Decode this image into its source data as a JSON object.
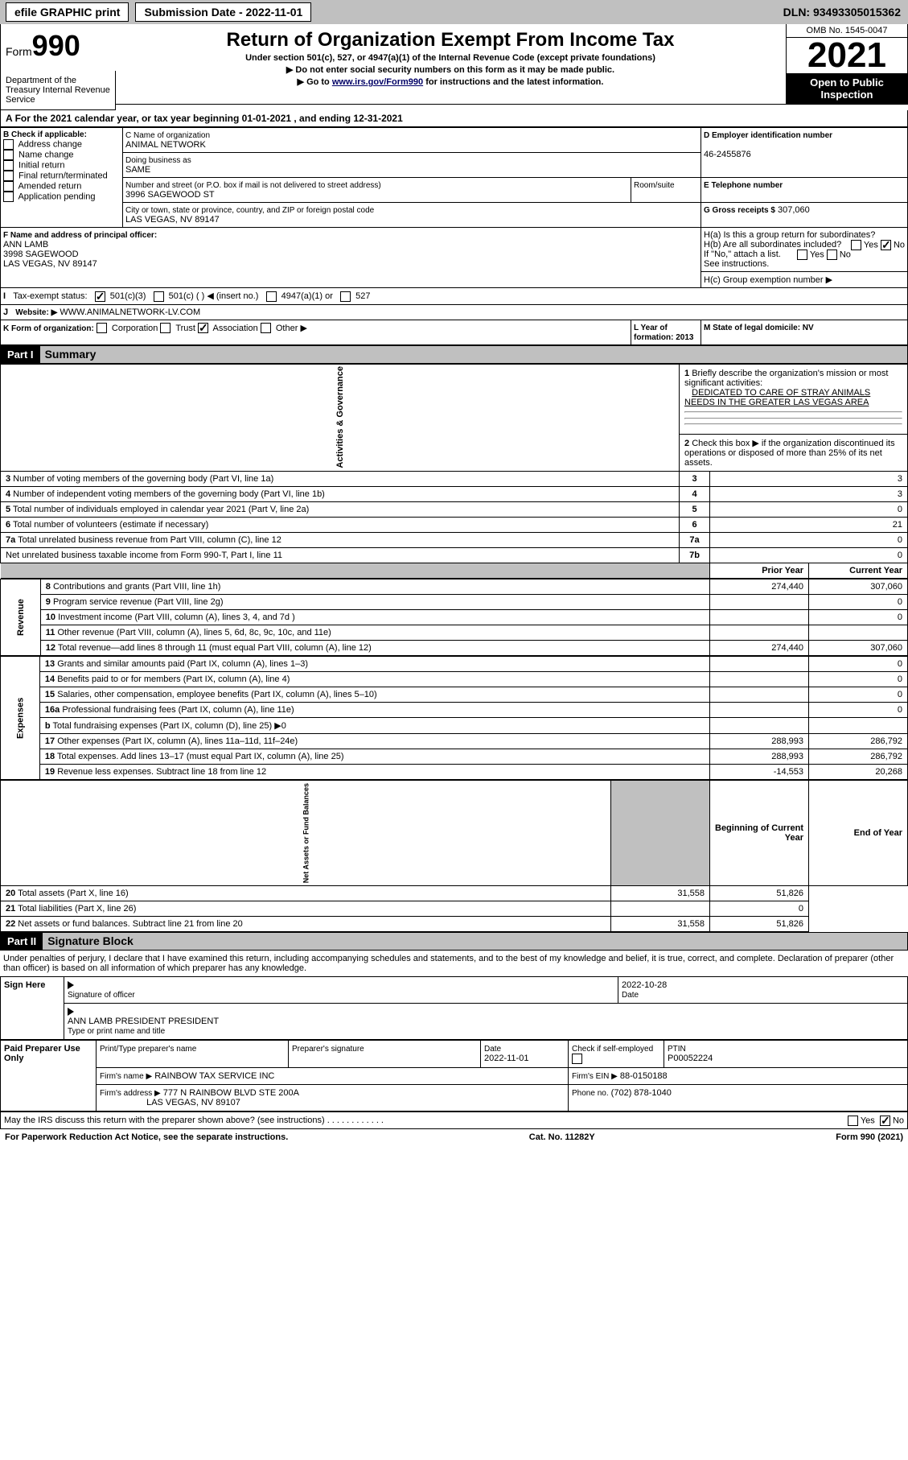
{
  "topbar": {
    "efile": "efile GRAPHIC print",
    "sub": "Submission Date - 2022-11-01",
    "dln": "DLN: 93493305015362"
  },
  "header": {
    "form": "Form",
    "num": "990",
    "title": "Return of Organization Exempt From Income Tax",
    "sub1": "Under section 501(c), 527, or 4947(a)(1) of the Internal Revenue Code (except private foundations)",
    "sub2": "▶ Do not enter social security numbers on this form as it may be made public.",
    "sub3_pre": "▶ Go to ",
    "sub3_link": "www.irs.gov/Form990",
    "sub3_post": " for instructions and the latest information.",
    "dept": "Department of the Treasury\nInternal Revenue Service",
    "omb": "OMB No. 1545-0047",
    "year": "2021",
    "open": "Open to Public Inspection"
  },
  "rowA": {
    "text": "For the 2021 calendar year, or tax year beginning 01-01-2021   , and ending 12-31-2021"
  },
  "boxB": {
    "title": "B Check if applicable:",
    "items": [
      "Address change",
      "Name change",
      "Initial return",
      "Final return/terminated",
      "Amended return",
      "Application pending"
    ]
  },
  "boxC": {
    "nameLbl": "C Name of organization",
    "name": "ANIMAL NETWORK",
    "dbaLbl": "Doing business as",
    "dba": "SAME",
    "addrLbl": "Number and street (or P.O. box if mail is not delivered to street address)",
    "room": "Room/suite",
    "addr": "3996 SAGEWOOD ST",
    "cityLbl": "City or town, state or province, country, and ZIP or foreign postal code",
    "city": "LAS VEGAS, NV  89147"
  },
  "boxD": {
    "lbl": "D Employer identification number",
    "val": "46-2455876"
  },
  "boxE": {
    "lbl": "E Telephone number",
    "val": ""
  },
  "boxG": {
    "lbl": "G Gross receipts $",
    "val": "307,060"
  },
  "boxF": {
    "lbl": "F Name and address of principal officer:",
    "name": "ANN LAMB",
    "addr": "3998 SAGEWOOD",
    "city": "LAS VEGAS, NV  89147"
  },
  "boxH": {
    "a": "H(a)  Is this a group return for subordinates?",
    "a_yes": "Yes",
    "a_no": "No",
    "b": "H(b)  Are all subordinates included?",
    "b_yes": "Yes",
    "b_no": "No",
    "b_note": "If \"No,\" attach a list. See instructions.",
    "c": "H(c)  Group exemption number ▶"
  },
  "rowI": {
    "lbl": "Tax-exempt status:",
    "o1": "501(c)(3)",
    "o2": "501(c) (  ) ◀ (insert no.)",
    "o3": "4947(a)(1) or",
    "o4": "527"
  },
  "rowJ": {
    "lbl": "Website: ▶",
    "val": "WWW.ANIMALNETWORK-LV.COM"
  },
  "rowK": {
    "lbl": "K Form of organization:",
    "o1": "Corporation",
    "o2": "Trust",
    "o3": "Association",
    "o4": "Other ▶"
  },
  "rowL": {
    "lbl": "L Year of formation: 2013"
  },
  "rowM": {
    "lbl": "M State of legal domicile: NV"
  },
  "part1": {
    "hdr": "Part I",
    "title": "Summary"
  },
  "summary": {
    "l1": "Briefly describe the organization's mission or most significant activities:",
    "l1v": "DEDICATED TO CARE OF STRAY ANIMALS NEEDS IN THE GREATER LAS VEGAS AREA",
    "l2": "Check this box ▶        if the organization discontinued its operations or disposed of more than 25% of its net assets.",
    "rows": [
      {
        "n": "3",
        "t": "Number of voting members of the governing body (Part VI, line 1a)",
        "ln": "3",
        "v": "3"
      },
      {
        "n": "4",
        "t": "Number of independent voting members of the governing body (Part VI, line 1b)",
        "ln": "4",
        "v": "3"
      },
      {
        "n": "5",
        "t": "Total number of individuals employed in calendar year 2021 (Part V, line 2a)",
        "ln": "5",
        "v": "0"
      },
      {
        "n": "6",
        "t": "Total number of volunteers (estimate if necessary)",
        "ln": "6",
        "v": "21"
      },
      {
        "n": "7a",
        "t": "Total unrelated business revenue from Part VIII, column (C), line 12",
        "ln": "7a",
        "v": "0"
      },
      {
        "n": "",
        "t": "Net unrelated business taxable income from Form 990-T, Part I, line 11",
        "ln": "7b",
        "v": "0"
      }
    ],
    "colPrior": "Prior Year",
    "colCurrent": "Current Year",
    "rev": [
      {
        "n": "8",
        "t": "Contributions and grants (Part VIII, line 1h)",
        "p": "274,440",
        "c": "307,060"
      },
      {
        "n": "9",
        "t": "Program service revenue (Part VIII, line 2g)",
        "p": "",
        "c": "0"
      },
      {
        "n": "10",
        "t": "Investment income (Part VIII, column (A), lines 3, 4, and 7d )",
        "p": "",
        "c": "0"
      },
      {
        "n": "11",
        "t": "Other revenue (Part VIII, column (A), lines 5, 6d, 8c, 9c, 10c, and 11e)",
        "p": "",
        "c": ""
      },
      {
        "n": "12",
        "t": "Total revenue—add lines 8 through 11 (must equal Part VIII, column (A), line 12)",
        "p": "274,440",
        "c": "307,060"
      }
    ],
    "exp": [
      {
        "n": "13",
        "t": "Grants and similar amounts paid (Part IX, column (A), lines 1–3)",
        "p": "",
        "c": "0"
      },
      {
        "n": "14",
        "t": "Benefits paid to or for members (Part IX, column (A), line 4)",
        "p": "",
        "c": "0"
      },
      {
        "n": "15",
        "t": "Salaries, other compensation, employee benefits (Part IX, column (A), lines 5–10)",
        "p": "",
        "c": "0"
      },
      {
        "n": "16a",
        "t": "Professional fundraising fees (Part IX, column (A), line 11e)",
        "p": "",
        "c": "0"
      },
      {
        "n": "b",
        "t": "Total fundraising expenses (Part IX, column (D), line 25) ▶0",
        "p": "",
        "c": "",
        "grey": true
      },
      {
        "n": "17",
        "t": "Other expenses (Part IX, column (A), lines 11a–11d, 11f–24e)",
        "p": "288,993",
        "c": "286,792"
      },
      {
        "n": "18",
        "t": "Total expenses. Add lines 13–17 (must equal Part IX, column (A), line 25)",
        "p": "288,993",
        "c": "286,792"
      },
      {
        "n": "19",
        "t": "Revenue less expenses. Subtract line 18 from line 12",
        "p": "-14,553",
        "c": "20,268"
      }
    ],
    "colBeg": "Beginning of Current Year",
    "colEnd": "End of Year",
    "net": [
      {
        "n": "20",
        "t": "Total assets (Part X, line 16)",
        "p": "31,558",
        "c": "51,826"
      },
      {
        "n": "21",
        "t": "Total liabilities (Part X, line 26)",
        "p": "",
        "c": "0"
      },
      {
        "n": "22",
        "t": "Net assets or fund balances. Subtract line 21 from line 20",
        "p": "31,558",
        "c": "51,826"
      }
    ],
    "side1": "Activities & Governance",
    "side2": "Revenue",
    "side3": "Expenses",
    "side4": "Net Assets or Fund Balances"
  },
  "part2": {
    "hdr": "Part II",
    "title": "Signature Block",
    "decl": "Under penalties of perjury, I declare that I have examined this return, including accompanying schedules and statements, and to the best of my knowledge and belief, it is true, correct, and complete. Declaration of preparer (other than officer) is based on all information of which preparer has any knowledge."
  },
  "sign": {
    "side": "Sign Here",
    "sigLbl": "Signature of officer",
    "dateLbl": "Date",
    "date": "2022-10-28",
    "nameLbl": "Type or print name and title",
    "name": "ANN LAMB PRESIDENT PRESIDENT"
  },
  "prep": {
    "side": "Paid Preparer Use Only",
    "h1": "Print/Type preparer's name",
    "h2": "Preparer's signature",
    "h3": "Date",
    "h3v": "2022-11-01",
    "h4": "Check        if self-employed",
    "h5": "PTIN",
    "h5v": "P00052224",
    "firmLbl": "Firm's name   ▶",
    "firm": "RAINBOW TAX SERVICE INC",
    "einLbl": "Firm's EIN ▶",
    "ein": "88-0150188",
    "addrLbl": "Firm's address ▶",
    "addr": "777 N RAINBOW BLVD STE 200A",
    "city": "LAS VEGAS, NV  89107",
    "phLbl": "Phone no.",
    "ph": "(702) 878-1040"
  },
  "discuss": {
    "t": "May the IRS discuss this return with the preparer shown above? (see instructions)",
    "yes": "Yes",
    "no": "No"
  },
  "footer": {
    "l": "For Paperwork Reduction Act Notice, see the separate instructions.",
    "c": "Cat. No. 11282Y",
    "r": "Form 990 (2021)"
  }
}
